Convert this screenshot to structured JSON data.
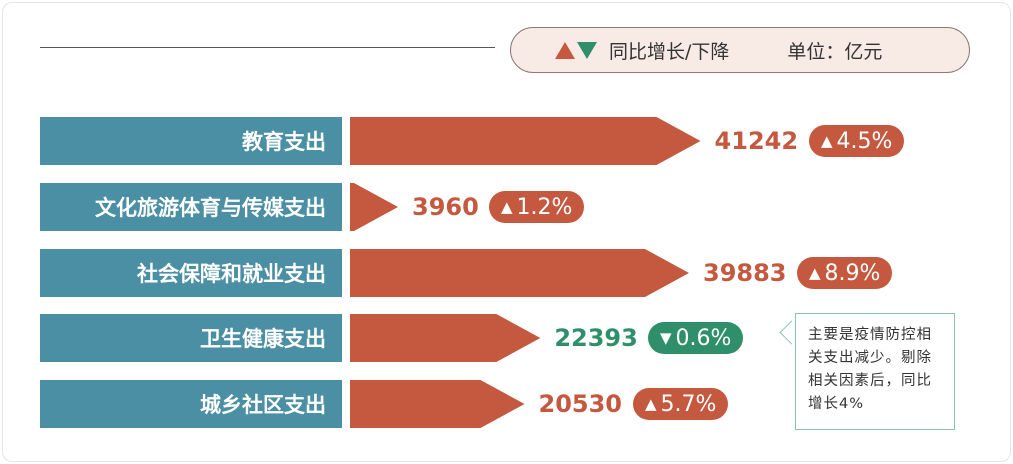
{
  "legend": {
    "text": "同比增长/下降",
    "unit": "单位：亿元",
    "up_color": "#c4593f",
    "down_color": "#2e8f6a"
  },
  "chart_data": {
    "type": "bar",
    "orientation": "horizontal",
    "unit": "亿元",
    "categories": [
      "教育支出",
      "文化旅游体育与传媒支出",
      "社会保障和就业支出",
      "卫生健康支出",
      "城乡社区支出"
    ],
    "values": [
      41242,
      3960,
      39883,
      22393,
      20530
    ],
    "change_labels": [
      "4.5%",
      "1.2%",
      "8.9%",
      "0.6%",
      "5.7%"
    ],
    "change_direction": [
      "up",
      "up",
      "up",
      "down",
      "up"
    ],
    "bar_color": "#c4593f",
    "label_color": "#4b8fa4"
  },
  "annotation": {
    "text": "主要是疫情防控相关支出减少。剔除相关因素后，同比增长4%",
    "target": "卫生健康支出"
  }
}
